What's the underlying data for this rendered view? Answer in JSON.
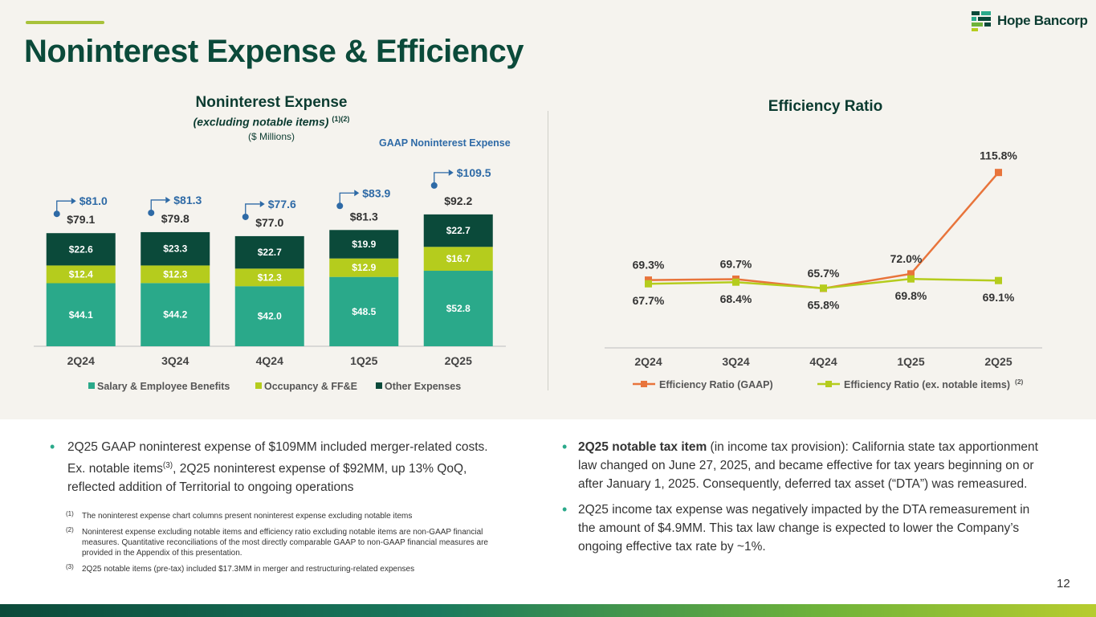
{
  "title": "Noninterest Expense & Efficiency",
  "logo": {
    "text": "Hope Bancorp"
  },
  "left_chart_title": "Noninterest Expense",
  "left_chart_subtitle": "(excluding notable items)",
  "left_chart_subtitle_sup": "(1)(2)",
  "left_chart_units": "($ Millions)",
  "gaap_label": "GAAP Noninterest Expense",
  "right_chart_title": "Efficiency Ratio",
  "chart_data": [
    {
      "type": "bar",
      "stacked": true,
      "title": "Noninterest Expense",
      "categories": [
        "2Q24",
        "3Q24",
        "4Q24",
        "1Q25",
        "2Q25"
      ],
      "series": [
        {
          "name": "Salary & Employee Benefits",
          "color": "#2aa98a",
          "values": [
            44.1,
            44.2,
            42.0,
            48.5,
            52.8
          ],
          "labels": [
            "$44.1",
            "$44.2",
            "$42.0",
            "$48.5",
            "$52.8"
          ]
        },
        {
          "name": "Occupancy & FF&E",
          "color": "#b5cc1d",
          "values": [
            12.4,
            12.3,
            12.3,
            12.9,
            16.7
          ],
          "labels": [
            "$12.4",
            "$12.3",
            "$12.3",
            "$12.9",
            "$16.7"
          ]
        },
        {
          "name": "Other Expenses",
          "color": "#0b4a3a",
          "values": [
            22.6,
            23.3,
            22.7,
            19.9,
            22.7
          ],
          "labels": [
            "$22.6",
            "$23.3",
            "$22.7",
            "$19.9",
            "$22.7"
          ]
        }
      ],
      "totals": [
        79.1,
        79.8,
        77.0,
        81.3,
        92.2
      ],
      "total_labels": [
        "$79.1",
        "$79.8",
        "$77.0",
        "$81.3",
        "$92.2"
      ],
      "gaap_totals": [
        81.0,
        81.3,
        77.6,
        83.9,
        109.5
      ],
      "gaap_labels": [
        "$81.0",
        "$81.3",
        "$77.6",
        "$83.9",
        "$109.5"
      ],
      "legend": [
        "Salary & Employee Benefits",
        "Occupancy & FF&E",
        "Other Expenses"
      ]
    },
    {
      "type": "line",
      "title": "Efficiency Ratio",
      "categories": [
        "2Q24",
        "3Q24",
        "4Q24",
        "1Q25",
        "2Q25"
      ],
      "series": [
        {
          "name": "Efficiency Ratio (GAAP)",
          "color": "#e8743b",
          "values": [
            69.3,
            69.7,
            65.7,
            72.0,
            115.8
          ],
          "labels": [
            "69.3%",
            "69.7%",
            "65.7%",
            "72.0%",
            "115.8%"
          ]
        },
        {
          "name": "Efficiency Ratio (ex. notable items)",
          "sup": "(2)",
          "color": "#b5cc1d",
          "values": [
            67.7,
            68.4,
            65.8,
            69.8,
            69.1
          ],
          "labels": [
            "67.7%",
            "68.4%",
            "65.8%",
            "69.8%",
            "69.1%"
          ]
        }
      ]
    }
  ],
  "bullets_left": [
    {
      "pre": "2Q25 GAAP noninterest expense of $109MM included merger-related costs. Ex. notable items",
      "sup": "(3)",
      "post": ", 2Q25 noninterest expense of $92MM, up 13% QoQ, reflected addition of Territorial to ongoing operations"
    }
  ],
  "footnotes": [
    {
      "num": "(1)",
      "text": "The noninterest expense chart columns present noninterest expense excluding notable items"
    },
    {
      "num": "(2)",
      "text": "Noninterest expense excluding notable items and efficiency ratio excluding notable items are non-GAAP financial measures. Quantitative reconciliations of the most directly comparable GAAP to non-GAAP financial measures are provided in the Appendix of this presentation."
    },
    {
      "num": "(3)",
      "text": "2Q25 notable items (pre-tax) included $17.3MM in merger and restructuring-related expenses"
    }
  ],
  "bullets_right": [
    {
      "bold": "2Q25 notable tax item",
      "text": " (in income tax provision): California state tax apportionment law changed on June 27, 2025, and became effective for tax years beginning on or after January 1, 2025. Consequently, deferred tax asset (“DTA”) was remeasured."
    },
    {
      "bold": "",
      "text": "2Q25 income tax expense was negatively impacted by the DTA remeasurement in the amount of $4.9MM. This tax law change is expected to lower the Company’s ongoing effective tax rate by ~1%."
    }
  ],
  "page_number": "12"
}
